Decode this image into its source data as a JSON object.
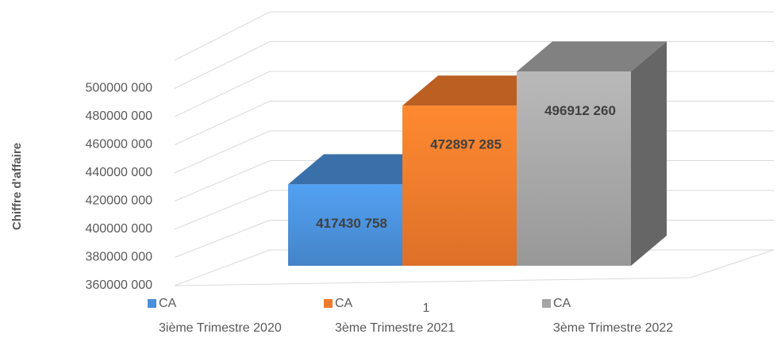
{
  "chart_data": {
    "type": "bar3d",
    "y_axis_label": "Chiffre d'affaire",
    "categories": [
      "1"
    ],
    "series": [
      {
        "name": "CA",
        "label": "3ième Trimestre 2020",
        "color": "#4a90d9",
        "values": [
          417430758
        ],
        "value_labels": [
          "417430 758"
        ]
      },
      {
        "name": "CA",
        "label": "3ème Trimestre  2021",
        "color": "#f07a2c",
        "values": [
          472897285
        ],
        "value_labels": [
          "472897 285"
        ]
      },
      {
        "name": "CA",
        "label": "3ème Trimestre  2022",
        "color": "#a5a5a5",
        "values": [
          496912260
        ],
        "value_labels": [
          "496912 260"
        ]
      }
    ],
    "ylim": [
      360000000,
      520000000
    ],
    "yticks": [
      {
        "value": 360000000,
        "label": "360000 000"
      },
      {
        "value": 380000000,
        "label": "380000 000"
      },
      {
        "value": 400000000,
        "label": "400000 000"
      },
      {
        "value": 420000000,
        "label": "420000 000"
      },
      {
        "value": 440000000,
        "label": "440000 000"
      },
      {
        "value": 460000000,
        "label": "460000 000"
      },
      {
        "value": 480000000,
        "label": "480000 000"
      },
      {
        "value": 500000000,
        "label": "500000 000"
      }
    ],
    "grid": true
  }
}
